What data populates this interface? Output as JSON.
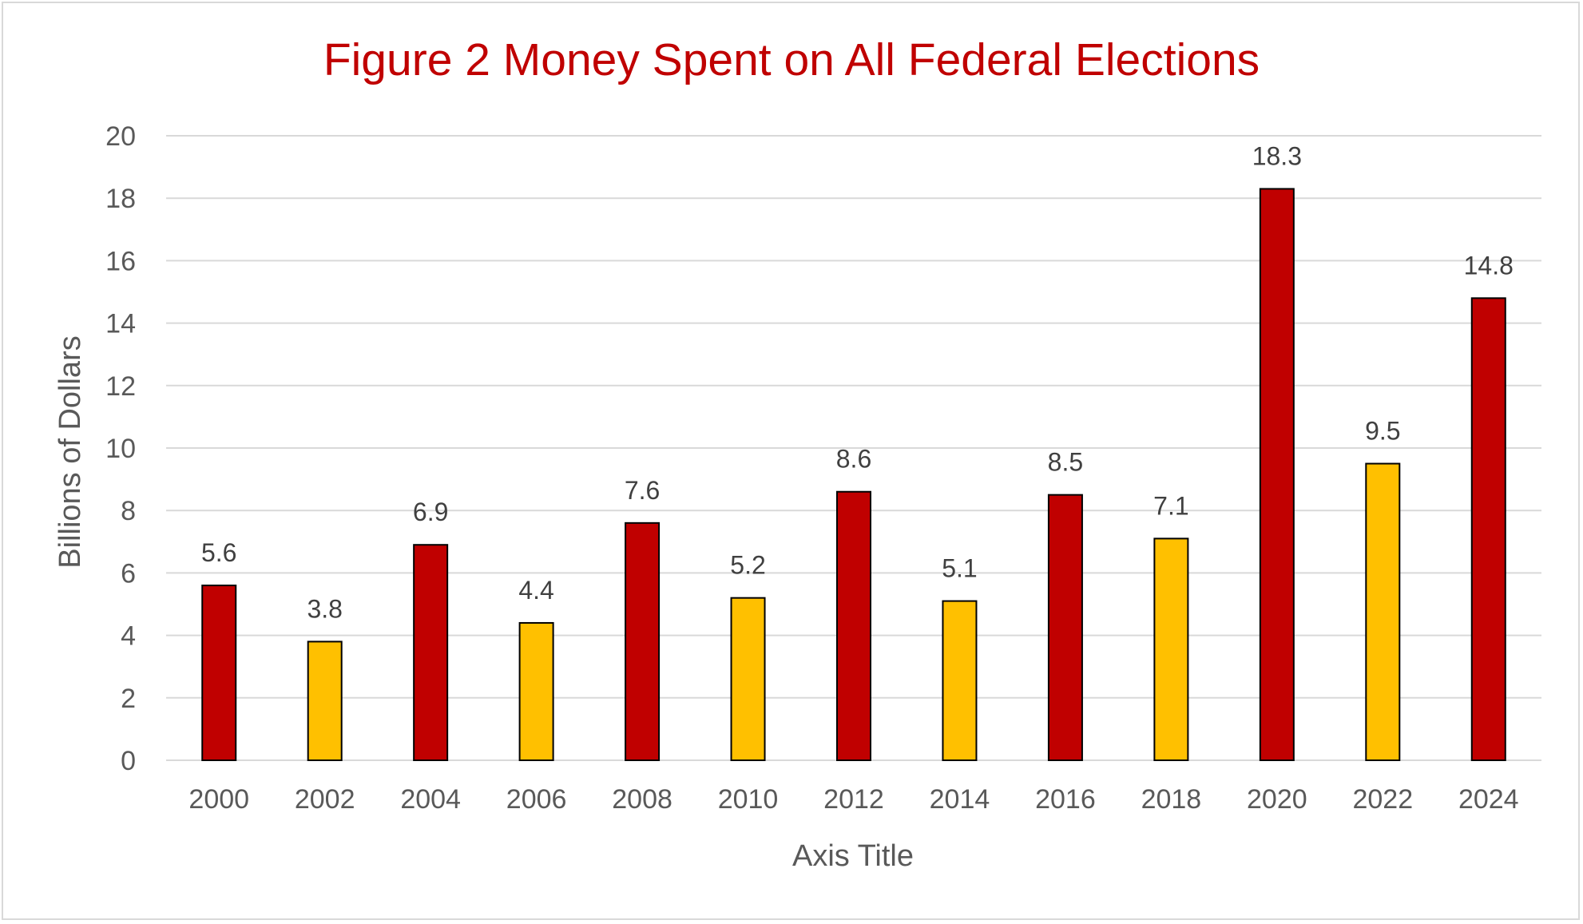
{
  "chart_data": {
    "type": "bar",
    "title": "Figure 2 Money Spent on All Federal Elections",
    "xlabel": "Axis Title",
    "ylabel": "Billions of Dollars",
    "categories": [
      "2000",
      "2002",
      "2004",
      "2006",
      "2008",
      "2010",
      "2012",
      "2014",
      "2016",
      "2018",
      "2020",
      "2022",
      "2024"
    ],
    "values": [
      5.6,
      3.8,
      6.9,
      4.4,
      7.6,
      5.2,
      8.6,
      5.1,
      8.5,
      7.1,
      18.3,
      9.5,
      14.8
    ],
    "data_labels": [
      "5.6",
      "3.8",
      "6.9",
      "4.4",
      "7.6",
      "5.2",
      "8.6",
      "5.1",
      "8.5",
      "7.1",
      "18.3",
      "9.5",
      "14.8"
    ],
    "ylim": [
      0,
      20
    ],
    "y_ticks": [
      0,
      2,
      4,
      6,
      8,
      10,
      12,
      14,
      16,
      18,
      20
    ],
    "y_tick_labels": [
      "0",
      "2",
      "4",
      "6",
      "8",
      "10",
      "12",
      "14",
      "16",
      "18",
      "20"
    ],
    "grid": true,
    "legend": "none",
    "colors": {
      "presidential_year": "#c00000",
      "midterm_year": "#ffc000",
      "bar_outline": "#000000",
      "title": "#c00000",
      "gridline": "#d9d9d9"
    },
    "bar_colors": [
      "#c00000",
      "#ffc000",
      "#c00000",
      "#ffc000",
      "#c00000",
      "#ffc000",
      "#c00000",
      "#ffc000",
      "#c00000",
      "#ffc000",
      "#c00000",
      "#ffc000",
      "#c00000"
    ]
  }
}
